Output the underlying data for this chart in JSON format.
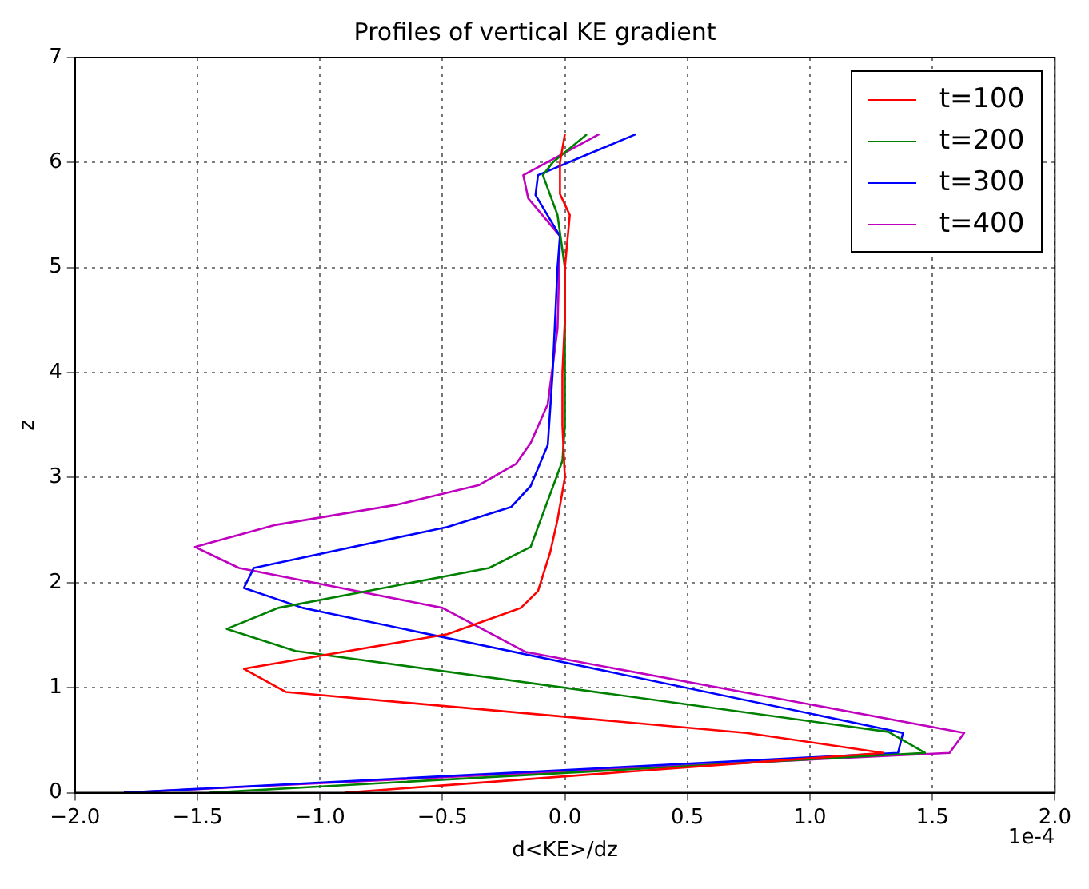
{
  "chart_data": {
    "type": "line",
    "title": "Profiles of vertical KE gradient",
    "xlabel": "d<KE>/dz",
    "ylabel": "z",
    "annotations": [
      "1e-4"
    ],
    "xlim": [
      -2.0,
      2.0
    ],
    "xticks": [
      {
        "value": -2,
        "label": "−2.0"
      },
      {
        "value": -1.5,
        "label": "−1.5"
      },
      {
        "value": -1,
        "label": "−1.0"
      },
      {
        "value": -0.5,
        "label": "−0.5"
      },
      {
        "value": 0,
        "label": "0.0"
      },
      {
        "value": 0.5,
        "label": "0.5"
      },
      {
        "value": 1,
        "label": "1.0"
      },
      {
        "value": 1.5,
        "label": "1.5"
      },
      {
        "value": 2,
        "label": "2.0"
      }
    ],
    "ylim": [
      0,
      7
    ],
    "yticks": [
      0,
      1,
      2,
      3,
      4,
      5,
      6,
      7
    ],
    "grid": true,
    "legend": "top right",
    "marker": "none",
    "line_style": "solid",
    "series": [
      {
        "name": "t=100",
        "color": "#ff0000",
        "x": [
          -0.9,
          1.3,
          0.74,
          -1.14,
          -1.31,
          -0.48,
          -0.18,
          -0.11,
          -0.06,
          -0.03,
          0.0,
          -0.01,
          -0.01,
          0.0,
          0.0,
          0.02,
          -0.02,
          -0.02,
          0.0
        ],
        "values": [
          0,
          0.38,
          0.57,
          0.96,
          1.18,
          1.51,
          1.76,
          1.92,
          2.29,
          2.6,
          3.0,
          3.5,
          4.0,
          4.5,
          5.0,
          5.5,
          5.7,
          6.0,
          6.27
        ]
      },
      {
        "name": "t=200",
        "color": "#008000",
        "x": [
          -1.45,
          1.47,
          1.32,
          -1.1,
          -1.38,
          -1.17,
          -0.31,
          -0.14,
          -0.01,
          0.0,
          0.0,
          -0.03,
          -0.09,
          -0.05,
          0.09
        ],
        "values": [
          0,
          0.38,
          0.58,
          1.35,
          1.56,
          1.76,
          2.14,
          2.34,
          3.16,
          3.5,
          5.0,
          5.5,
          5.88,
          6.0,
          6.27
        ]
      },
      {
        "name": "t=300",
        "color": "#0000ff",
        "x": [
          -1.8,
          1.36,
          1.38,
          -1.07,
          -1.31,
          -1.27,
          -0.48,
          -0.22,
          -0.14,
          -0.07,
          -0.05,
          -0.03,
          -0.02,
          -0.12,
          -0.11,
          0.29
        ],
        "values": [
          0,
          0.38,
          0.57,
          1.76,
          1.95,
          2.14,
          2.53,
          2.72,
          2.92,
          3.31,
          4.0,
          5.0,
          5.3,
          5.69,
          5.88,
          6.27
        ]
      },
      {
        "name": "t=400",
        "color": "#bf00bf",
        "x": [
          -1.8,
          1.57,
          1.63,
          -0.16,
          -0.5,
          -1.33,
          -1.51,
          -1.18,
          -0.69,
          -0.35,
          -0.2,
          -0.14,
          -0.07,
          -0.03,
          -0.02,
          -0.15,
          -0.17,
          0.14
        ],
        "values": [
          0,
          0.38,
          0.57,
          1.34,
          1.76,
          2.14,
          2.34,
          2.55,
          2.74,
          2.93,
          3.13,
          3.33,
          3.7,
          4.42,
          5.3,
          5.66,
          5.88,
          6.27
        ]
      }
    ]
  }
}
